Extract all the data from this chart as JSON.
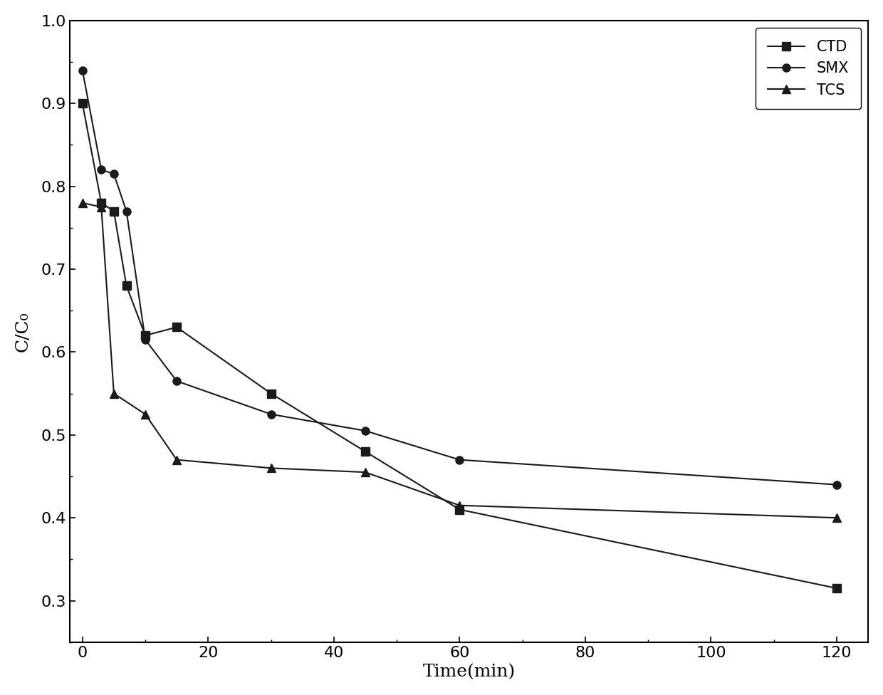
{
  "CTD_x": [
    0,
    3,
    5,
    7,
    10,
    15,
    30,
    45,
    60,
    120
  ],
  "CTD_y": [
    0.9,
    0.78,
    0.77,
    0.68,
    0.62,
    0.63,
    0.55,
    0.48,
    0.41,
    0.315
  ],
  "SMX_x": [
    0,
    3,
    5,
    7,
    10,
    15,
    30,
    45,
    60,
    120
  ],
  "SMX_y": [
    0.94,
    0.82,
    0.815,
    0.77,
    0.615,
    0.565,
    0.525,
    0.505,
    0.47,
    0.44
  ],
  "TCS_x": [
    0,
    3,
    5,
    10,
    15,
    30,
    45,
    60,
    120
  ],
  "TCS_y": [
    0.78,
    0.775,
    0.55,
    0.525,
    0.47,
    0.46,
    0.455,
    0.415,
    0.4
  ],
  "xlabel": "Time(min)",
  "ylabel": "C/C₀",
  "xlim": [
    -2,
    125
  ],
  "ylim": [
    0.25,
    1.0
  ],
  "yticks": [
    0.3,
    0.4,
    0.5,
    0.6,
    0.7,
    0.8,
    0.9,
    1.0
  ],
  "xticks": [
    0,
    20,
    40,
    60,
    80,
    100,
    120
  ],
  "color": "#1a1a1a",
  "linewidth": 1.5,
  "markersize": 8,
  "legend_loc": "upper right",
  "figsize": [
    12.4,
    9.76
  ],
  "dpi": 100,
  "series_labels": [
    "CTD",
    "SMX",
    "TCS"
  ],
  "series_markers": [
    "s",
    "o",
    "^"
  ]
}
